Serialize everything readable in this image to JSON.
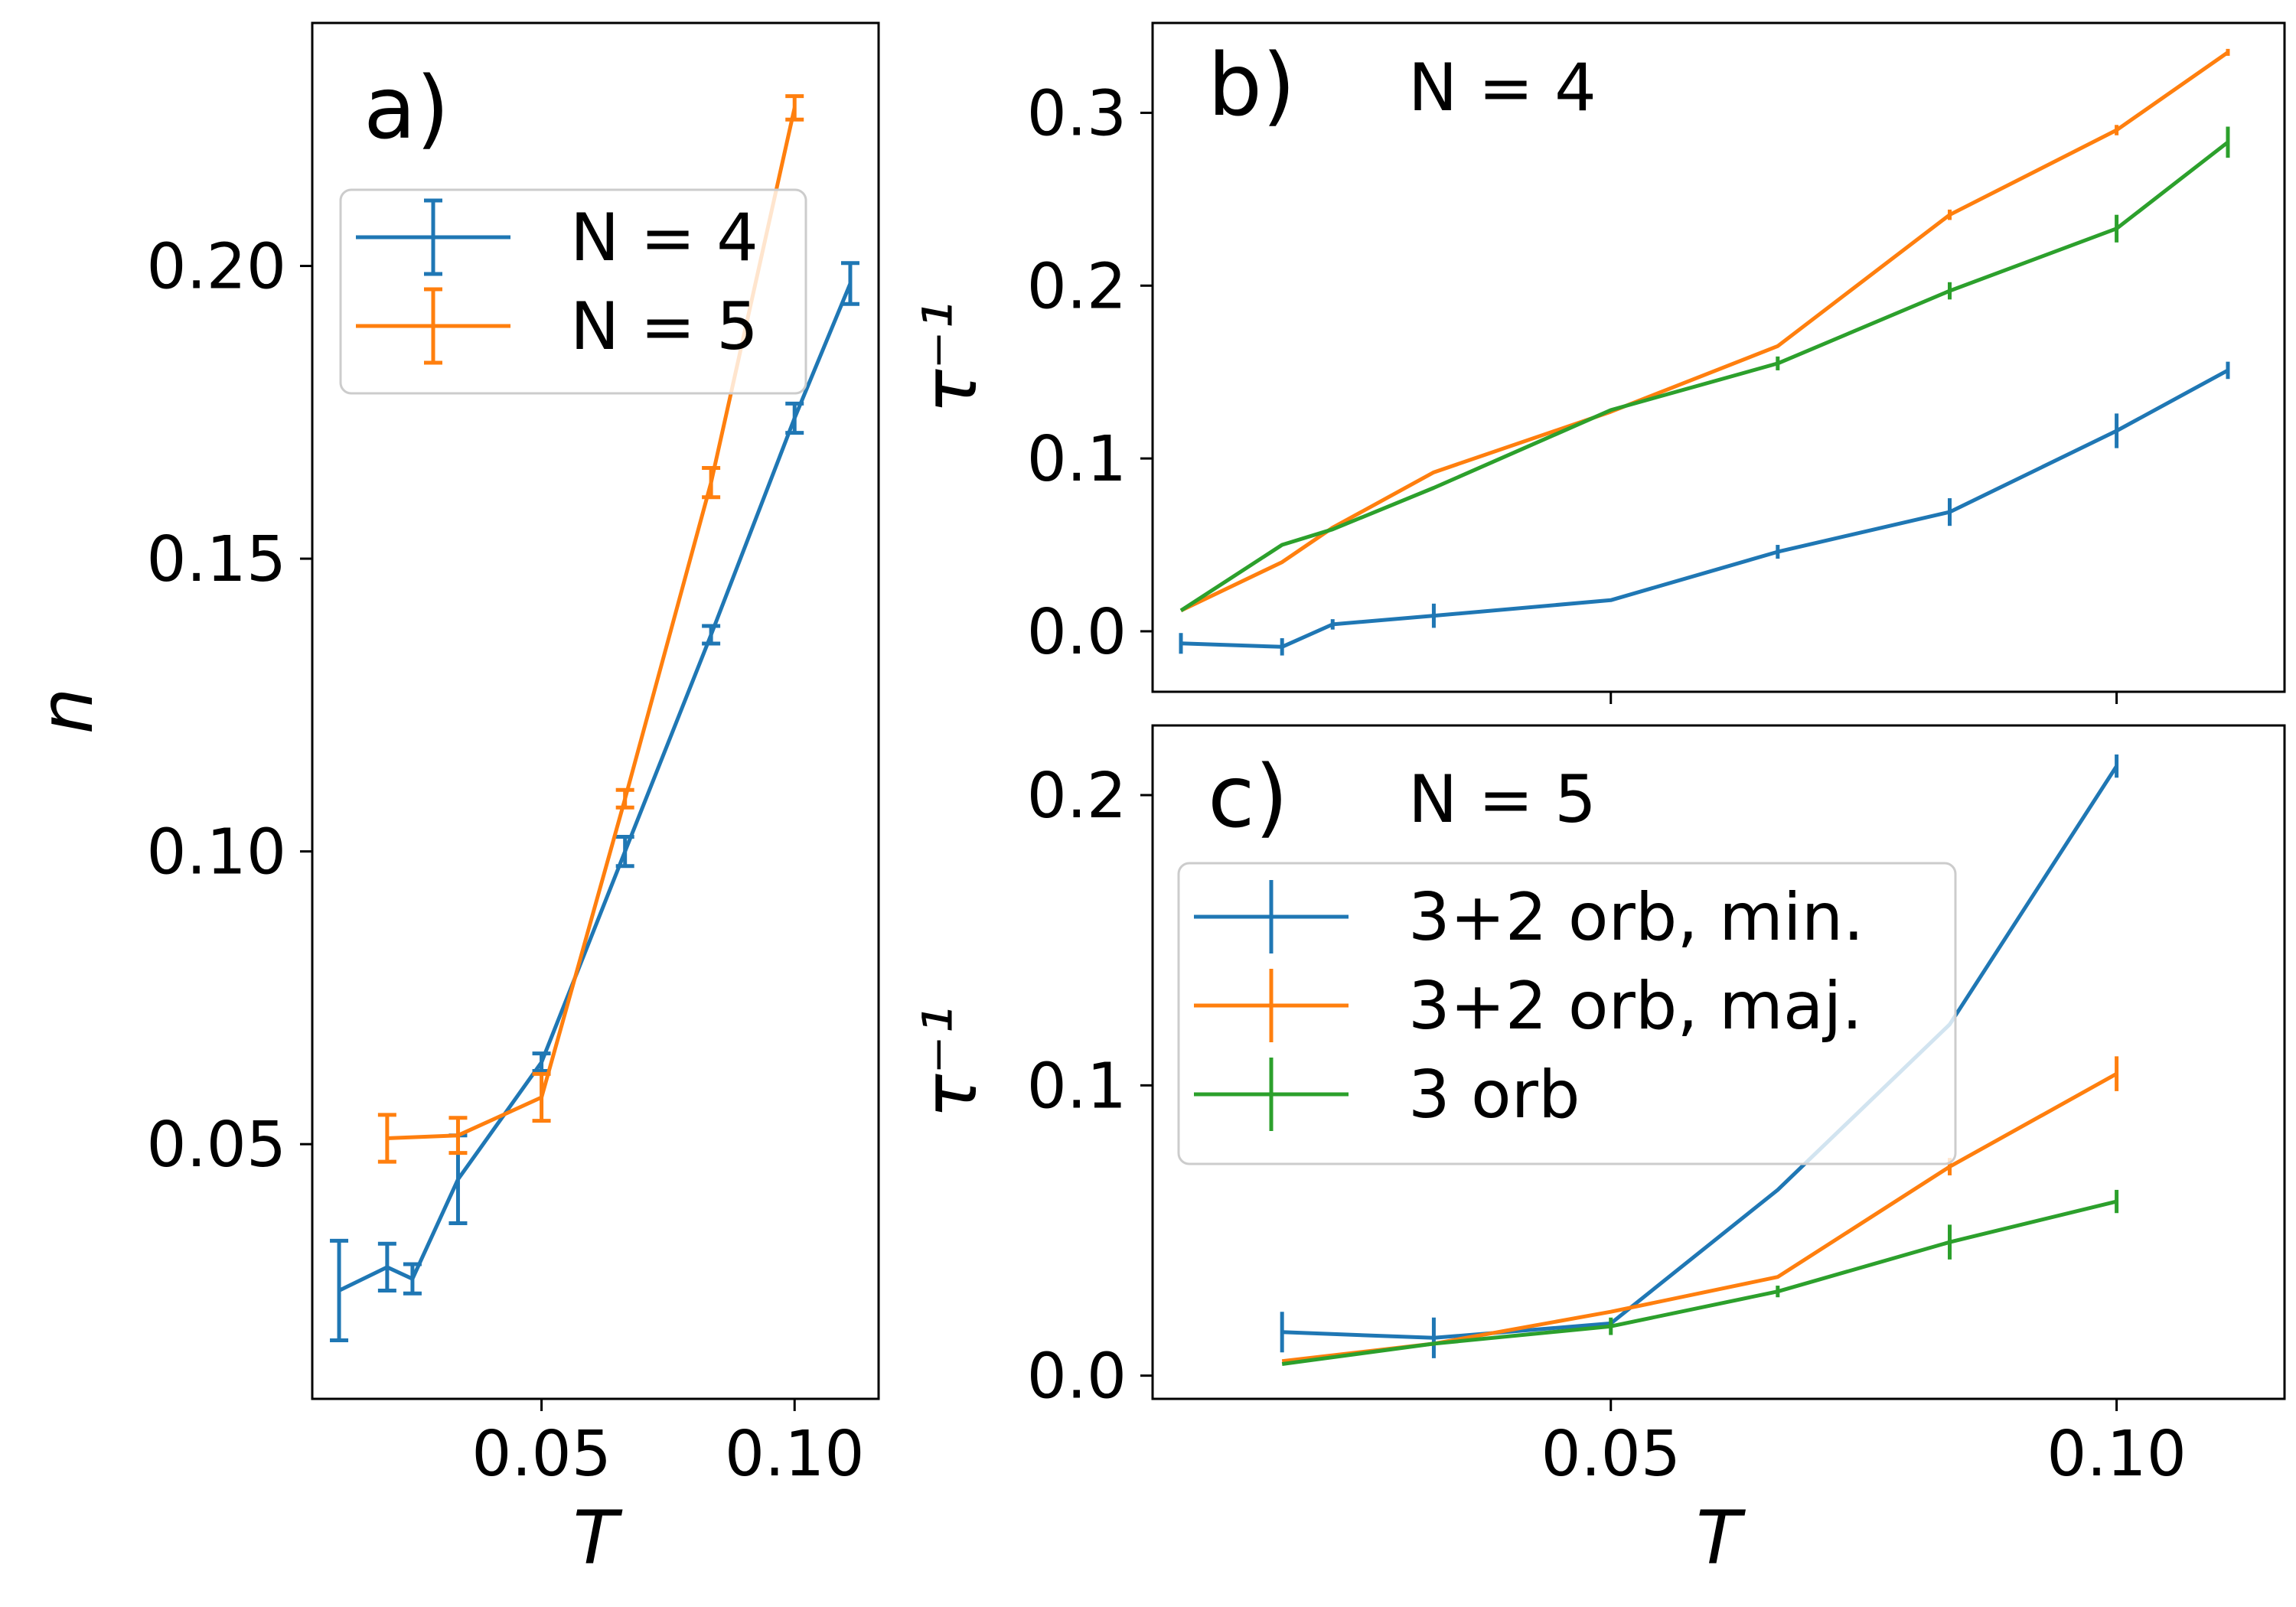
{
  "chart_data": [
    {
      "id": "a",
      "type": "line",
      "panel_label": "a)",
      "xlabel": "T",
      "ylabel": "n",
      "xlim": [
        0.0047,
        0.1166
      ],
      "ylim": [
        0.0065,
        0.2415
      ],
      "xticks": [
        0.05,
        0.1
      ],
      "xtick_labels": [
        "0.05",
        "0.10"
      ],
      "yticks": [
        0.05,
        0.1,
        0.15,
        0.2
      ],
      "ytick_labels": [
        "0.05",
        "0.10",
        "0.15",
        "0.20"
      ],
      "legend_position": "upper-left",
      "series": [
        {
          "name": "N = 4",
          "color": "#1f77b4",
          "x": [
            0.01,
            0.0195,
            0.0245,
            0.0335,
            0.05,
            0.0665,
            0.0835,
            0.1,
            0.111
          ],
          "y": [
            0.025,
            0.029,
            0.027,
            0.044,
            0.064,
            0.1,
            0.137,
            0.174,
            0.197
          ],
          "err": [
            0.0085,
            0.004,
            0.0025,
            0.0075,
            0.0015,
            0.0025,
            0.0015,
            0.0025,
            0.0035
          ]
        },
        {
          "name": "N = 5",
          "color": "#ff7f0e",
          "x": [
            0.0195,
            0.0335,
            0.05,
            0.0665,
            0.0835,
            0.1
          ],
          "y": [
            0.051,
            0.0515,
            0.058,
            0.109,
            0.163,
            0.227
          ],
          "err": [
            0.004,
            0.003,
            0.004,
            0.0015,
            0.0025,
            0.002
          ]
        }
      ]
    },
    {
      "id": "b",
      "type": "line",
      "panel_label": "b)",
      "annotation": "N = 4",
      "xlabel": "",
      "ylabel": "τ⁻¹",
      "xlim": [
        0.0047,
        0.1166
      ],
      "ylim": [
        -0.035,
        0.352
      ],
      "xticks": [
        0.05,
        0.1
      ],
      "xtick_labels": [
        "",
        ""
      ],
      "yticks": [
        0.0,
        0.1,
        0.2,
        0.3
      ],
      "ytick_labels": [
        "0.0",
        "0.1",
        "0.2",
        "0.3"
      ],
      "series": [
        {
          "name": "N = 4",
          "color": "#1f77b4",
          "x": [
            0.0075,
            0.0175,
            0.0225,
            0.0325,
            0.05,
            0.0665,
            0.0835,
            0.1,
            0.111
          ],
          "y": [
            -0.007,
            -0.009,
            0.004,
            0.009,
            0.018,
            0.046,
            0.069,
            0.116,
            0.151
          ],
          "err": [
            0.006,
            0.005,
            0.003,
            0.007,
            0.0,
            0.004,
            0.008,
            0.01,
            0.005
          ]
        },
        {
          "name": "N = 5",
          "color": "#ff7f0e",
          "x": [
            0.0075,
            0.0175,
            0.0225,
            0.0325,
            0.05,
            0.0665,
            0.0835,
            0.1,
            0.111
          ],
          "y": [
            0.012,
            0.04,
            0.06,
            0.092,
            0.127,
            0.165,
            0.241,
            0.29,
            0.335
          ],
          "err": [
            0.0,
            0.0,
            0.0,
            0.0,
            0.0,
            0.0,
            0.003,
            0.003,
            0.002
          ]
        },
        {
          "name": "3 orb",
          "color": "#2ca02c",
          "x": [
            0.0075,
            0.0175,
            0.0225,
            0.0325,
            0.05,
            0.0665,
            0.0835,
            0.1,
            0.111
          ],
          "y": [
            0.012,
            0.05,
            0.059,
            0.083,
            0.128,
            0.155,
            0.197,
            0.233,
            0.283
          ],
          "err": [
            0.0,
            0.0,
            0.0,
            0.0,
            0.0,
            0.004,
            0.005,
            0.008,
            0.009
          ]
        }
      ]
    },
    {
      "id": "c",
      "type": "line",
      "panel_label": "c)",
      "annotation": "N = 5",
      "xlabel": "T",
      "ylabel": "τ⁻¹",
      "xlim": [
        0.0047,
        0.1166
      ],
      "ylim": [
        -0.008,
        0.224
      ],
      "xticks": [
        0.05,
        0.1
      ],
      "xtick_labels": [
        "0.05",
        "0.10"
      ],
      "yticks": [
        0.0,
        0.1,
        0.2
      ],
      "ytick_labels": [
        "0.0",
        "0.1",
        "0.2"
      ],
      "legend_position": "center-left",
      "series": [
        {
          "name": "3+2 orb, min.",
          "color": "#1f77b4",
          "x": [
            0.0175,
            0.0325,
            0.05,
            0.0665,
            0.0835,
            0.1
          ],
          "y": [
            0.015,
            0.013,
            0.018,
            0.064,
            0.121,
            0.21
          ],
          "err": [
            0.007,
            0.007,
            0.0,
            0.0,
            0.0,
            0.004
          ]
        },
        {
          "name": "3+2 orb, maj.",
          "color": "#ff7f0e",
          "x": [
            0.0175,
            0.0325,
            0.05,
            0.0665,
            0.0835,
            0.1
          ],
          "y": [
            0.005,
            0.011,
            0.022,
            0.034,
            0.072,
            0.104
          ],
          "err": [
            0.0,
            0.0,
            0.0,
            0.0,
            0.003,
            0.006
          ]
        },
        {
          "name": "3 orb",
          "color": "#2ca02c",
          "x": [
            0.0175,
            0.0325,
            0.05,
            0.0665,
            0.0835,
            0.1
          ],
          "y": [
            0.004,
            0.011,
            0.017,
            0.029,
            0.046,
            0.06
          ],
          "err": [
            0.0,
            0.0,
            0.003,
            0.002,
            0.006,
            0.004
          ]
        }
      ]
    }
  ]
}
